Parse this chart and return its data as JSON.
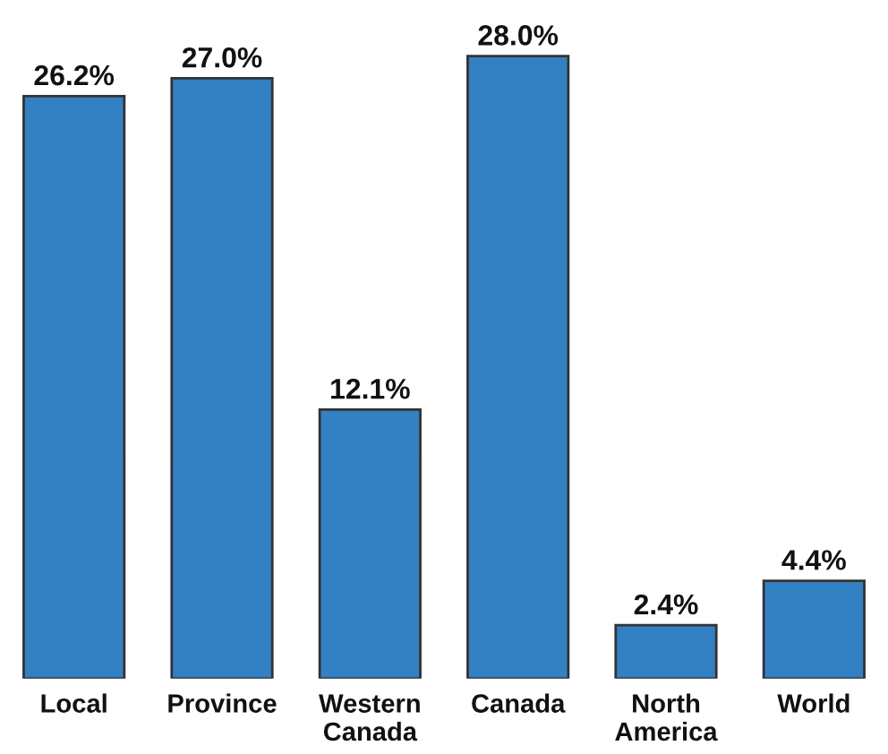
{
  "chart_data": {
    "type": "bar",
    "categories": [
      "Local",
      "Province",
      "Western Canada",
      "Canada",
      "North America",
      "World"
    ],
    "values": [
      26.2,
      27.0,
      12.1,
      28.0,
      2.4,
      4.4
    ],
    "value_labels": [
      "26.2%",
      "27.0%",
      "12.1%",
      "28.0%",
      "2.4%",
      "4.4%"
    ],
    "color": "#3380c2",
    "tick_labels": "x",
    "grid": false,
    "legend": false
  }
}
